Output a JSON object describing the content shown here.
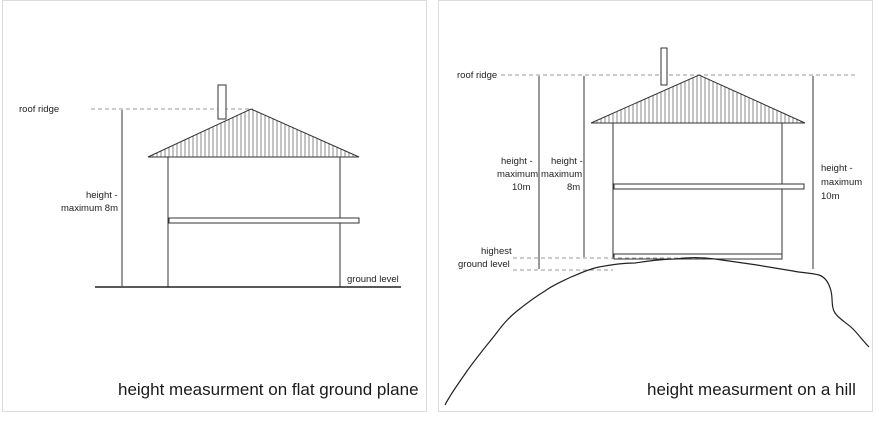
{
  "left_diagram": {
    "label_roof_ridge": "roof ridge",
    "label_height_line1": "height -",
    "label_height_line2": "maximum 8m",
    "label_ground": "ground level",
    "caption": "height measurment on flat ground plane"
  },
  "right_diagram": {
    "label_roof_ridge": "roof ridge",
    "label_h10_line1": "height -",
    "label_h10_line2": "maximum",
    "label_h10_line3": "10m",
    "label_h8_line1": "height -",
    "label_h8_line2": "maximum",
    "label_h8_line3": "8m",
    "label_h10r_line1": "height -",
    "label_h10r_line2": "maximum",
    "label_h10r_line3": "10m",
    "label_highest1": "highest",
    "label_highest2": "ground level",
    "caption": "height measurment on a hill"
  },
  "colors": {
    "line": "#333333",
    "dashed": "#9a9a9a",
    "border": "#dcdcdc"
  }
}
